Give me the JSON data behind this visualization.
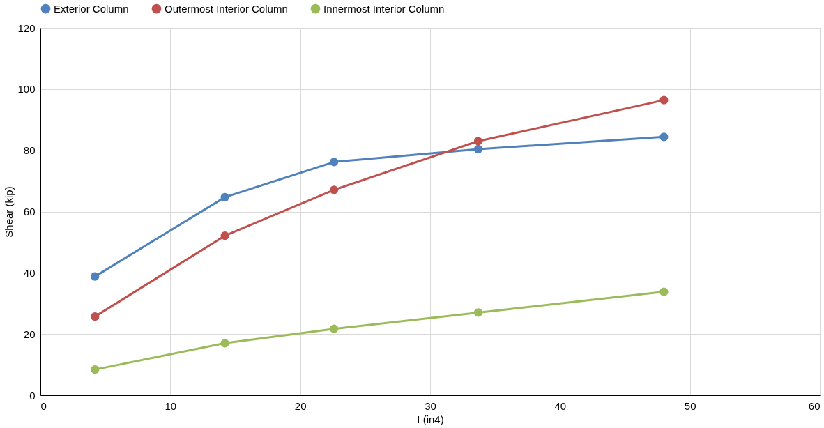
{
  "chart_data": {
    "type": "line",
    "xlabel": "I (in4)",
    "ylabel": "Shear (kip)",
    "x": [
      4.2,
      14.2,
      22.6,
      33.7,
      48.0
    ],
    "series": [
      {
        "name": "Exterior Column",
        "color": "#4f81bd",
        "values": [
          38.8,
          64.7,
          76.2,
          80.4,
          84.4
        ]
      },
      {
        "name": "Outermost Interior Column",
        "color": "#c0504d",
        "values": [
          25.7,
          52.1,
          67.1,
          83.0,
          96.4
        ]
      },
      {
        "name": "Innermost Interior Column",
        "color": "#9bbb59",
        "values": [
          8.4,
          17.0,
          21.7,
          27.0,
          33.8
        ]
      }
    ],
    "xlim": [
      0,
      60
    ],
    "xticks": [
      0,
      10,
      20,
      30,
      40,
      50,
      60
    ],
    "ylim": [
      0,
      120
    ],
    "yticks": [
      0,
      20,
      40,
      60,
      80,
      100,
      120
    ],
    "grid": true,
    "legend": "top",
    "marker": "circle",
    "line_style": "solid"
  }
}
